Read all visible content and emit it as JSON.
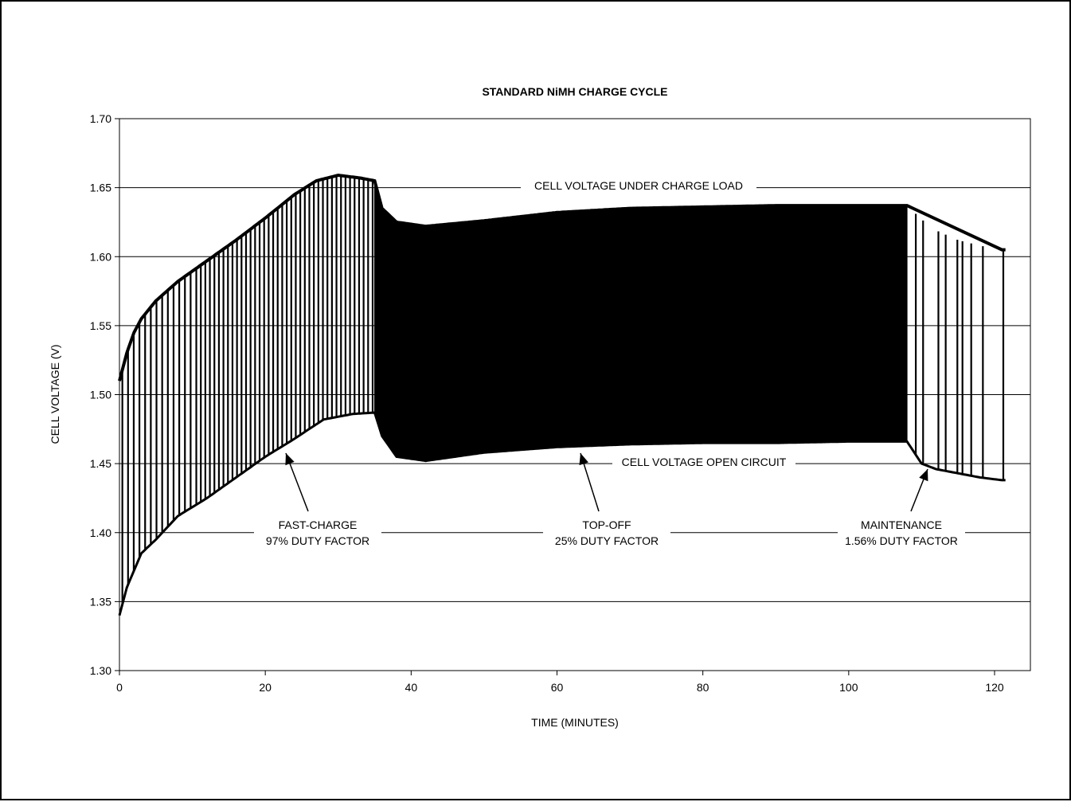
{
  "chart_data": {
    "type": "line",
    "title": "STANDARD NiMH CHARGE CYCLE",
    "xlabel": "TIME (MINUTES)",
    "ylabel": "CELL VOLTAGE (V)",
    "xlim": [
      0,
      125
    ],
    "ylim": [
      1.3,
      1.7
    ],
    "x_ticks": [
      "0",
      "20",
      "40",
      "60",
      "80",
      "100",
      "120"
    ],
    "y_ticks": [
      "1.30",
      "1.35",
      "1.40",
      "1.45",
      "1.50",
      "1.55",
      "1.60",
      "1.65",
      "1.70"
    ],
    "grid": "horizontal",
    "series": [
      {
        "name": "CELL VOLTAGE UNDER CHARGE LOAD",
        "x": [
          0,
          1,
          2,
          3,
          5,
          8,
          12,
          16,
          20,
          24,
          27,
          30,
          33,
          35,
          36,
          38,
          42,
          50,
          60,
          70,
          80,
          90,
          100,
          108,
          110,
          112,
          115,
          118,
          121
        ],
        "y": [
          1.51,
          1.53,
          1.545,
          1.555,
          1.568,
          1.582,
          1.597,
          1.612,
          1.628,
          1.645,
          1.655,
          1.659,
          1.657,
          1.655,
          1.635,
          1.625,
          1.622,
          1.626,
          1.632,
          1.635,
          1.636,
          1.637,
          1.637,
          1.637,
          1.627,
          1.619,
          1.612,
          1.608,
          1.605
        ]
      },
      {
        "name": "CELL VOLTAGE OPEN CIRCUIT",
        "x": [
          0,
          1,
          3,
          5,
          8,
          12,
          16,
          20,
          24,
          28,
          32,
          35,
          36,
          38,
          42,
          50,
          60,
          70,
          80,
          90,
          100,
          108,
          110,
          112,
          115,
          118,
          121
        ],
        "y": [
          1.34,
          1.36,
          1.385,
          1.395,
          1.412,
          1.425,
          1.44,
          1.455,
          1.468,
          1.482,
          1.486,
          1.487,
          1.47,
          1.455,
          1.452,
          1.458,
          1.462,
          1.464,
          1.465,
          1.465,
          1.466,
          1.466,
          1.45,
          1.446,
          1.443,
          1.44,
          1.438
        ]
      }
    ],
    "annotations": [
      {
        "text": "CELL VOLTAGE UNDER CHARGE LOAD"
      },
      {
        "text": "CELL VOLTAGE OPEN CIRCUIT"
      },
      {
        "lines": [
          "FAST-CHARGE",
          "97% DUTY FACTOR"
        ]
      },
      {
        "lines": [
          "TOP-OFF",
          "25% DUTY FACTOR"
        ]
      },
      {
        "lines": [
          "MAINTENANCE",
          "1.56% DUTY FACTOR"
        ]
      }
    ],
    "phases": [
      {
        "name": "FAST-CHARGE",
        "start": 0,
        "end": 35,
        "duty_factor": 0.97
      },
      {
        "name": "TOP-OFF",
        "start": 35,
        "end": 108,
        "duty_factor": 0.25
      },
      {
        "name": "MAINTENANCE",
        "start": 108,
        "end": 121.5,
        "duty_factor": 0.0156
      }
    ]
  }
}
